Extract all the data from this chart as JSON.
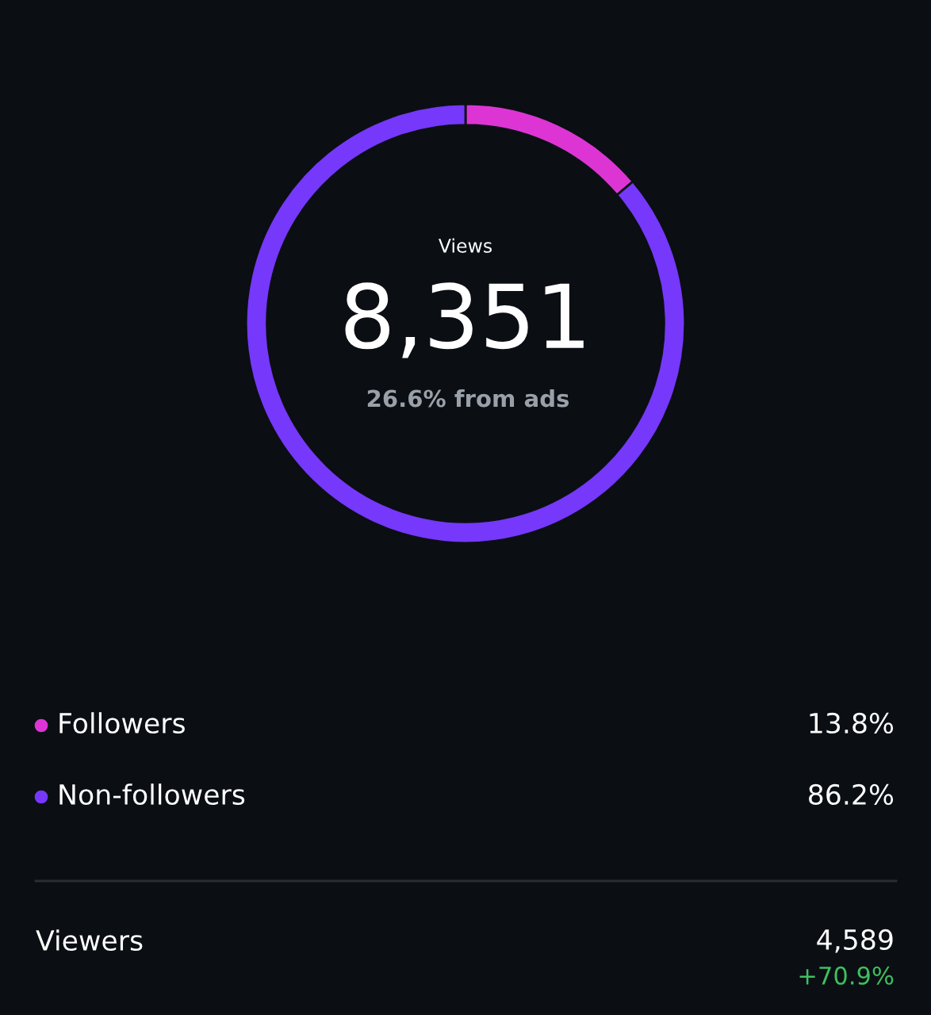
{
  "chart_data": {
    "type": "donut",
    "title": "Views",
    "categories": [
      "Followers",
      "Non-followers"
    ],
    "values": [
      13.8,
      86.2
    ],
    "colors": [
      "#dd35d4",
      "#7638fa"
    ],
    "value_labels": [
      "13.8%",
      "86.2%"
    ],
    "legend": "bottom",
    "annotations": [
      "8,351",
      "26.6% from ads",
      "Viewers",
      "4,589",
      "+70.9%"
    ]
  }
}
